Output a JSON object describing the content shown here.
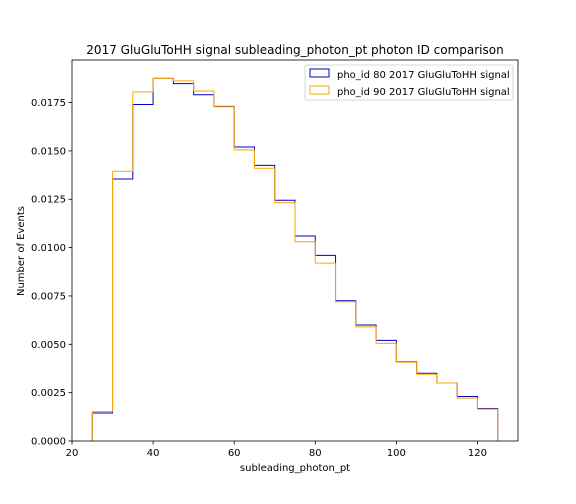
{
  "chart_data": {
    "type": "histogram-step",
    "title": "2017 GluGluToHH signal subleading_photon_pt photon ID comparison",
    "xlabel": "subleading_photon_pt",
    "ylabel": "Number of Events",
    "xlim": [
      20,
      130
    ],
    "ylim": [
      0,
      0.0197
    ],
    "xticks": [
      20,
      40,
      60,
      80,
      100,
      120
    ],
    "yticks": [
      "0.0000",
      "0.0025",
      "0.0050",
      "0.0075",
      "0.0100",
      "0.0125",
      "0.0150",
      "0.0175"
    ],
    "yticks_values": [
      0,
      0.0025,
      0.005,
      0.0075,
      0.01,
      0.0125,
      0.015,
      0.0175
    ],
    "grid": false,
    "legend_position": "top-right",
    "bin_edges": [
      25,
      30,
      35,
      40,
      45,
      50,
      55,
      60,
      65,
      70,
      75,
      80,
      85,
      90,
      95,
      100,
      105,
      110,
      115,
      120,
      125
    ],
    "series": [
      {
        "name": "pho_id 80 2017 GluGluToHH signal",
        "color": "#0000cc",
        "values": [
          0.00145,
          0.01355,
          0.0174,
          0.01875,
          0.01848,
          0.0179,
          0.0173,
          0.0152,
          0.01425,
          0.01245,
          0.0106,
          0.0096,
          0.00725,
          0.006,
          0.0052,
          0.0041,
          0.0035,
          0.003,
          0.0023,
          0.00168
        ]
      },
      {
        "name": "pho_id 90 2017 GluGluToHH signal",
        "color": "#ffa500",
        "values": [
          0.00152,
          0.01395,
          0.01805,
          0.01875,
          0.01862,
          0.0181,
          0.01728,
          0.01505,
          0.0141,
          0.01232,
          0.0103,
          0.0092,
          0.0072,
          0.0059,
          0.00505,
          0.00408,
          0.00345,
          0.003,
          0.00222,
          0.00165
        ]
      }
    ]
  }
}
